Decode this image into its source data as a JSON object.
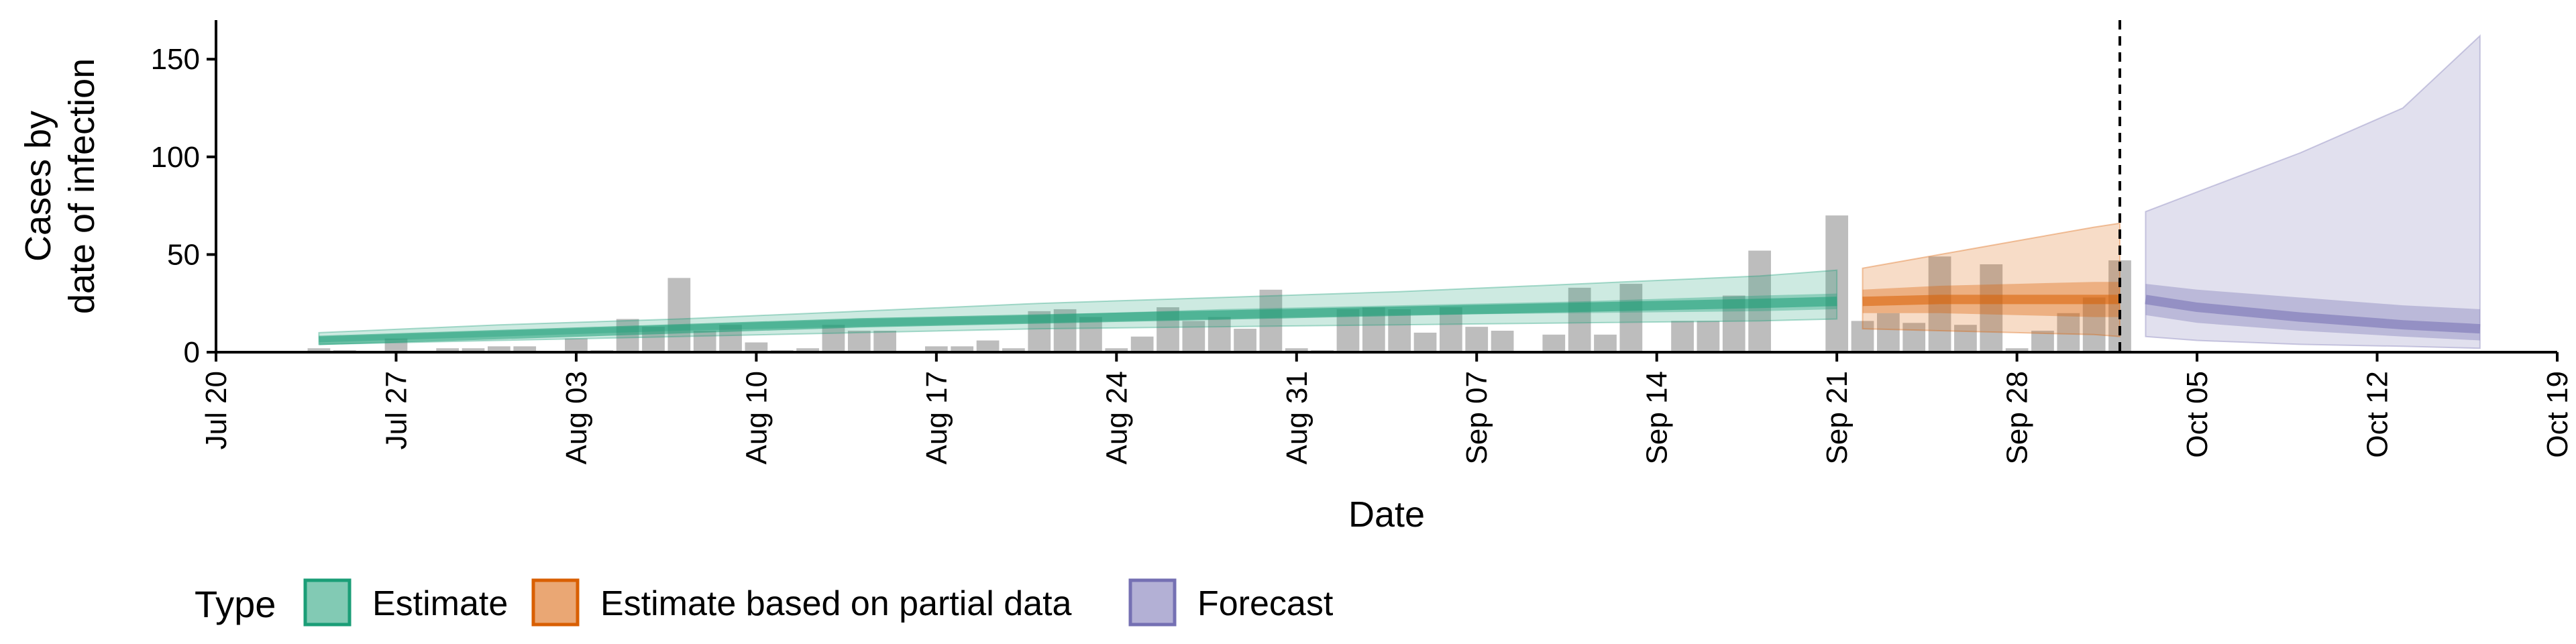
{
  "chart_data": {
    "type": "bar",
    "title": "",
    "xlabel": "Date",
    "ylabel_lines": [
      "Cases by",
      "date of infection"
    ],
    "xlim": [
      "2020-07-20",
      "2020-10-19"
    ],
    "ylim": [
      0,
      170
    ],
    "y_ticks": [
      0,
      50,
      100,
      150
    ],
    "x_ticks": [
      {
        "date": "2020-07-20",
        "label": "Jul 20"
      },
      {
        "date": "2020-07-27",
        "label": "Jul 27"
      },
      {
        "date": "2020-08-03",
        "label": "Aug 03"
      },
      {
        "date": "2020-08-10",
        "label": "Aug 10"
      },
      {
        "date": "2020-08-17",
        "label": "Aug 17"
      },
      {
        "date": "2020-08-24",
        "label": "Aug 24"
      },
      {
        "date": "2020-08-31",
        "label": "Aug 31"
      },
      {
        "date": "2020-09-07",
        "label": "Sep 07"
      },
      {
        "date": "2020-09-14",
        "label": "Sep 14"
      },
      {
        "date": "2020-09-21",
        "label": "Sep 21"
      },
      {
        "date": "2020-09-28",
        "label": "Sep 28"
      },
      {
        "date": "2020-10-05",
        "label": "Oct 05"
      },
      {
        "date": "2020-10-12",
        "label": "Oct 12"
      },
      {
        "date": "2020-10-19",
        "label": "Oct 19"
      }
    ],
    "forecast_divider_date": "2020-10-02",
    "bars": {
      "color": "#bdbdbd",
      "x": [
        "2020-07-24",
        "2020-07-25",
        "2020-07-26",
        "2020-07-27",
        "2020-07-28",
        "2020-07-29",
        "2020-07-30",
        "2020-07-31",
        "2020-08-01",
        "2020-08-02",
        "2020-08-03",
        "2020-08-04",
        "2020-08-05",
        "2020-08-06",
        "2020-08-07",
        "2020-08-08",
        "2020-08-09",
        "2020-08-10",
        "2020-08-11",
        "2020-08-12",
        "2020-08-13",
        "2020-08-14",
        "2020-08-15",
        "2020-08-16",
        "2020-08-17",
        "2020-08-18",
        "2020-08-19",
        "2020-08-20",
        "2020-08-21",
        "2020-08-22",
        "2020-08-23",
        "2020-08-24",
        "2020-08-25",
        "2020-08-26",
        "2020-08-27",
        "2020-08-28",
        "2020-08-29",
        "2020-08-30",
        "2020-08-31",
        "2020-09-01",
        "2020-09-02",
        "2020-09-03",
        "2020-09-04",
        "2020-09-05",
        "2020-09-06",
        "2020-09-07",
        "2020-09-08",
        "2020-09-09",
        "2020-09-10",
        "2020-09-11",
        "2020-09-12",
        "2020-09-13",
        "2020-09-14",
        "2020-09-15",
        "2020-09-16",
        "2020-09-17",
        "2020-09-18",
        "2020-09-19",
        "2020-09-20",
        "2020-09-21",
        "2020-09-22",
        "2020-09-23",
        "2020-09-24",
        "2020-09-25",
        "2020-09-26",
        "2020-09-27",
        "2020-09-28",
        "2020-09-29",
        "2020-09-30",
        "2020-10-01",
        "2020-10-02"
      ],
      "values": [
        2,
        1,
        0,
        7,
        0,
        2,
        2,
        3,
        3,
        0,
        7,
        1,
        17,
        13,
        38,
        11,
        14,
        5,
        1,
        2,
        14,
        11,
        11,
        0,
        3,
        3,
        6,
        2,
        21,
        22,
        18,
        2,
        8,
        23,
        16,
        18,
        12,
        32,
        2,
        1,
        22,
        23,
        22,
        10,
        23,
        13,
        11,
        0,
        9,
        33,
        9,
        35,
        0,
        16,
        16,
        29,
        52,
        0,
        0,
        70,
        16,
        20,
        15,
        49,
        14,
        45,
        2,
        11,
        20,
        28,
        47
      ]
    },
    "series": [
      {
        "name": "Estimate",
        "color": "#1b9e77",
        "x": [
          "2020-07-24",
          "2020-07-31",
          "2020-08-07",
          "2020-08-14",
          "2020-08-21",
          "2020-08-28",
          "2020-09-04",
          "2020-09-11",
          "2020-09-18",
          "2020-09-21"
        ],
        "median": [
          6,
          9,
          12,
          15,
          17,
          19,
          21,
          23,
          25,
          26
        ],
        "inner_low": [
          5,
          8,
          11,
          13,
          15,
          17,
          19,
          20,
          21,
          22
        ],
        "inner_high": [
          8,
          11,
          14,
          17,
          19,
          22,
          24,
          26,
          29,
          30
        ],
        "outer_low": [
          4,
          6,
          8,
          10,
          12,
          13,
          14,
          15,
          16,
          17
        ],
        "outer_high": [
          10,
          14,
          17,
          21,
          25,
          28,
          31,
          35,
          39,
          42
        ]
      },
      {
        "name": "Estimate based on partial data",
        "color": "#d95f02",
        "x": [
          "2020-09-22",
          "2020-09-25",
          "2020-09-28",
          "2020-10-01",
          "2020-10-02"
        ],
        "median": [
          26,
          27,
          27,
          27,
          27
        ],
        "inner_low": [
          20,
          20,
          19,
          18,
          18
        ],
        "inner_high": [
          32,
          34,
          35,
          36,
          36
        ],
        "outer_low": [
          12,
          11,
          10,
          9,
          8
        ],
        "outer_high": [
          43,
          50,
          57,
          64,
          66
        ]
      },
      {
        "name": "Forecast",
        "color": "#7570b3",
        "x": [
          "2020-10-03",
          "2020-10-05",
          "2020-10-09",
          "2020-10-13",
          "2020-10-16"
        ],
        "median": [
          27,
          23,
          18,
          14,
          12
        ],
        "inner_low": [
          19,
          15,
          11,
          8,
          6
        ],
        "inner_high": [
          35,
          32,
          28,
          24,
          22
        ],
        "outer_low": [
          8,
          6,
          4,
          3,
          2
        ],
        "outer_high": [
          72,
          82,
          102,
          125,
          162
        ]
      }
    ],
    "legend": {
      "title": "Type",
      "placement": "bottom-left",
      "entries": [
        "Estimate",
        "Estimate based on partial data",
        "Forecast"
      ]
    }
  }
}
